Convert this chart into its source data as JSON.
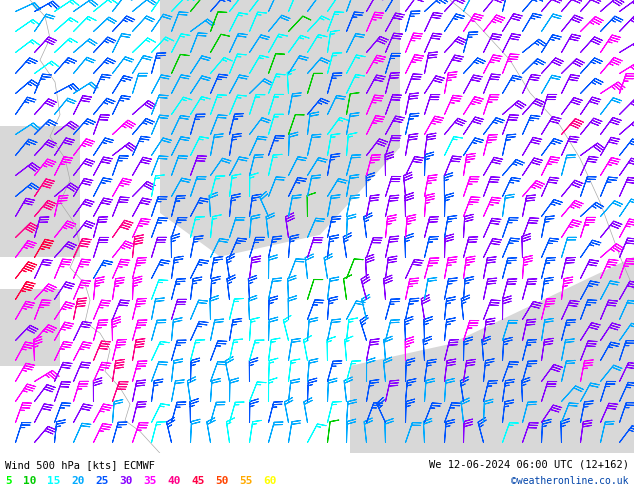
{
  "title_left": "Wind 500 hPa [kts] ECMWF",
  "title_right": "We 12-06-2024 06:00 UTC (12+162)",
  "credit": "©weatheronline.co.uk",
  "legend_values": [
    5,
    10,
    15,
    20,
    25,
    30,
    35,
    40,
    45,
    50,
    55,
    60
  ],
  "legend_colors": [
    "#00ff00",
    "#00cc00",
    "#00ffff",
    "#00aaff",
    "#0055ff",
    "#8800ff",
    "#ff00ff",
    "#ff0088",
    "#ff0044",
    "#ff4400",
    "#ffaa00",
    "#ffff00"
  ],
  "bg_land": "#aaee88",
  "bg_sea": "#d8d8d8",
  "bottom_bg": "#ffffff",
  "figsize": [
    6.34,
    4.9
  ],
  "dpi": 100
}
